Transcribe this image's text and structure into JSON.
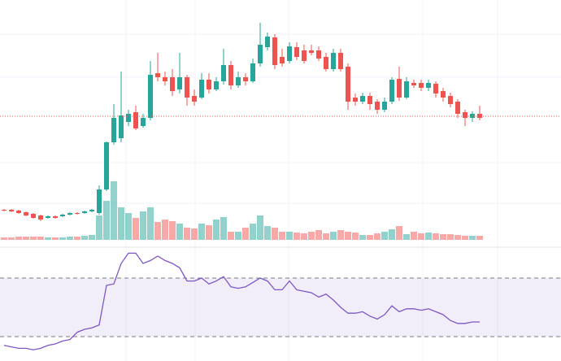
{
  "chart_data": {
    "type": "candlestick",
    "up_color": "#26a69a",
    "down_color": "#ef5350",
    "ylim": [
      0,
      300
    ],
    "open": [
      42,
      42,
      41,
      39,
      37,
      35,
      32,
      34,
      34,
      36,
      38,
      38,
      40,
      38,
      67,
      125,
      130,
      150,
      162,
      145,
      155,
      210,
      205,
      205,
      190,
      205,
      182,
      180,
      202,
      190,
      200,
      220,
      195,
      205,
      200,
      222,
      242,
      254,
      230,
      225,
      242,
      238,
      238,
      238,
      230,
      215,
      235,
      218,
      180,
      175,
      182,
      175,
      165,
      175,
      203,
      180,
      198,
      198,
      192,
      197,
      188,
      182,
      175,
      162,
      155,
      160
    ],
    "high": [
      43,
      43,
      42,
      40,
      38,
      36,
      35,
      35,
      37,
      39,
      39,
      41,
      43,
      72,
      126,
      172,
      212,
      165,
      170,
      160,
      225,
      235,
      212,
      215,
      235,
      208,
      190,
      210,
      210,
      205,
      240,
      225,
      212,
      210,
      228,
      272,
      260,
      258,
      240,
      248,
      248,
      245,
      245,
      243,
      235,
      240,
      240,
      222,
      185,
      186,
      186,
      178,
      180,
      205,
      218,
      205,
      202,
      202,
      202,
      200,
      192,
      186,
      178,
      165,
      163,
      170
    ],
    "low": [
      40,
      39,
      37,
      34,
      31,
      28,
      31,
      31,
      33,
      35,
      36,
      37,
      39,
      36,
      65,
      122,
      125,
      145,
      140,
      143,
      152,
      200,
      195,
      182,
      185,
      170,
      170,
      178,
      185,
      188,
      196,
      190,
      192,
      195,
      198,
      218,
      238,
      215,
      218,
      222,
      226,
      222,
      232,
      225,
      212,
      212,
      212,
      165,
      170,
      172,
      165,
      160,
      162,
      172,
      176,
      178,
      192,
      188,
      188,
      180,
      175,
      168,
      155,
      145,
      150,
      152
    ],
    "close": [
      41,
      40,
      38,
      35,
      32,
      30,
      34,
      32,
      36,
      38,
      37,
      40,
      42,
      67,
      125,
      155,
      158,
      160,
      142,
      155,
      208,
      205,
      200,
      188,
      205,
      180,
      175,
      202,
      190,
      200,
      220,
      195,
      205,
      200,
      222,
      245,
      255,
      220,
      222,
      243,
      230,
      225,
      235,
      228,
      215,
      235,
      215,
      175,
      175,
      182,
      172,
      165,
      175,
      202,
      180,
      200,
      195,
      192,
      198,
      185,
      180,
      172,
      160,
      155,
      160,
      155
    ],
    "price_line": 157,
    "volume_ylim": [
      0,
      295
    ],
    "volume": [
      3,
      3,
      4,
      4,
      4,
      4,
      3,
      3,
      3,
      4,
      4,
      5,
      6,
      30,
      48,
      72,
      40,
      33,
      27,
      35,
      40,
      22,
      25,
      23,
      20,
      15,
      14,
      20,
      18,
      25,
      28,
      10,
      10,
      15,
      20,
      30,
      17,
      15,
      10,
      10,
      9,
      8,
      10,
      12,
      8,
      10,
      12,
      10,
      9,
      6,
      6,
      8,
      10,
      13,
      17,
      7,
      10,
      8,
      9,
      8,
      7,
      7,
      6,
      5,
      5,
      5
    ],
    "rsi_ylim": [
      20,
      90
    ],
    "rsi_bands": [
      70,
      30
    ],
    "rsi_color": "#7e57c2",
    "rsi": [
      24,
      23,
      22,
      22,
      21,
      22,
      24,
      25,
      27,
      28,
      33,
      35,
      36,
      38,
      65,
      66,
      80,
      87,
      87,
      80,
      82,
      85,
      82,
      80,
      77,
      68,
      68,
      70,
      66,
      68,
      71,
      64,
      63,
      64,
      67,
      70,
      68,
      62,
      62,
      68,
      62,
      61,
      60,
      57,
      59,
      55,
      50,
      46,
      46,
      47,
      44,
      42,
      45,
      51,
      47,
      49,
      49,
      48,
      49,
      47,
      45,
      41,
      39,
      39,
      40,
      40
    ]
  }
}
